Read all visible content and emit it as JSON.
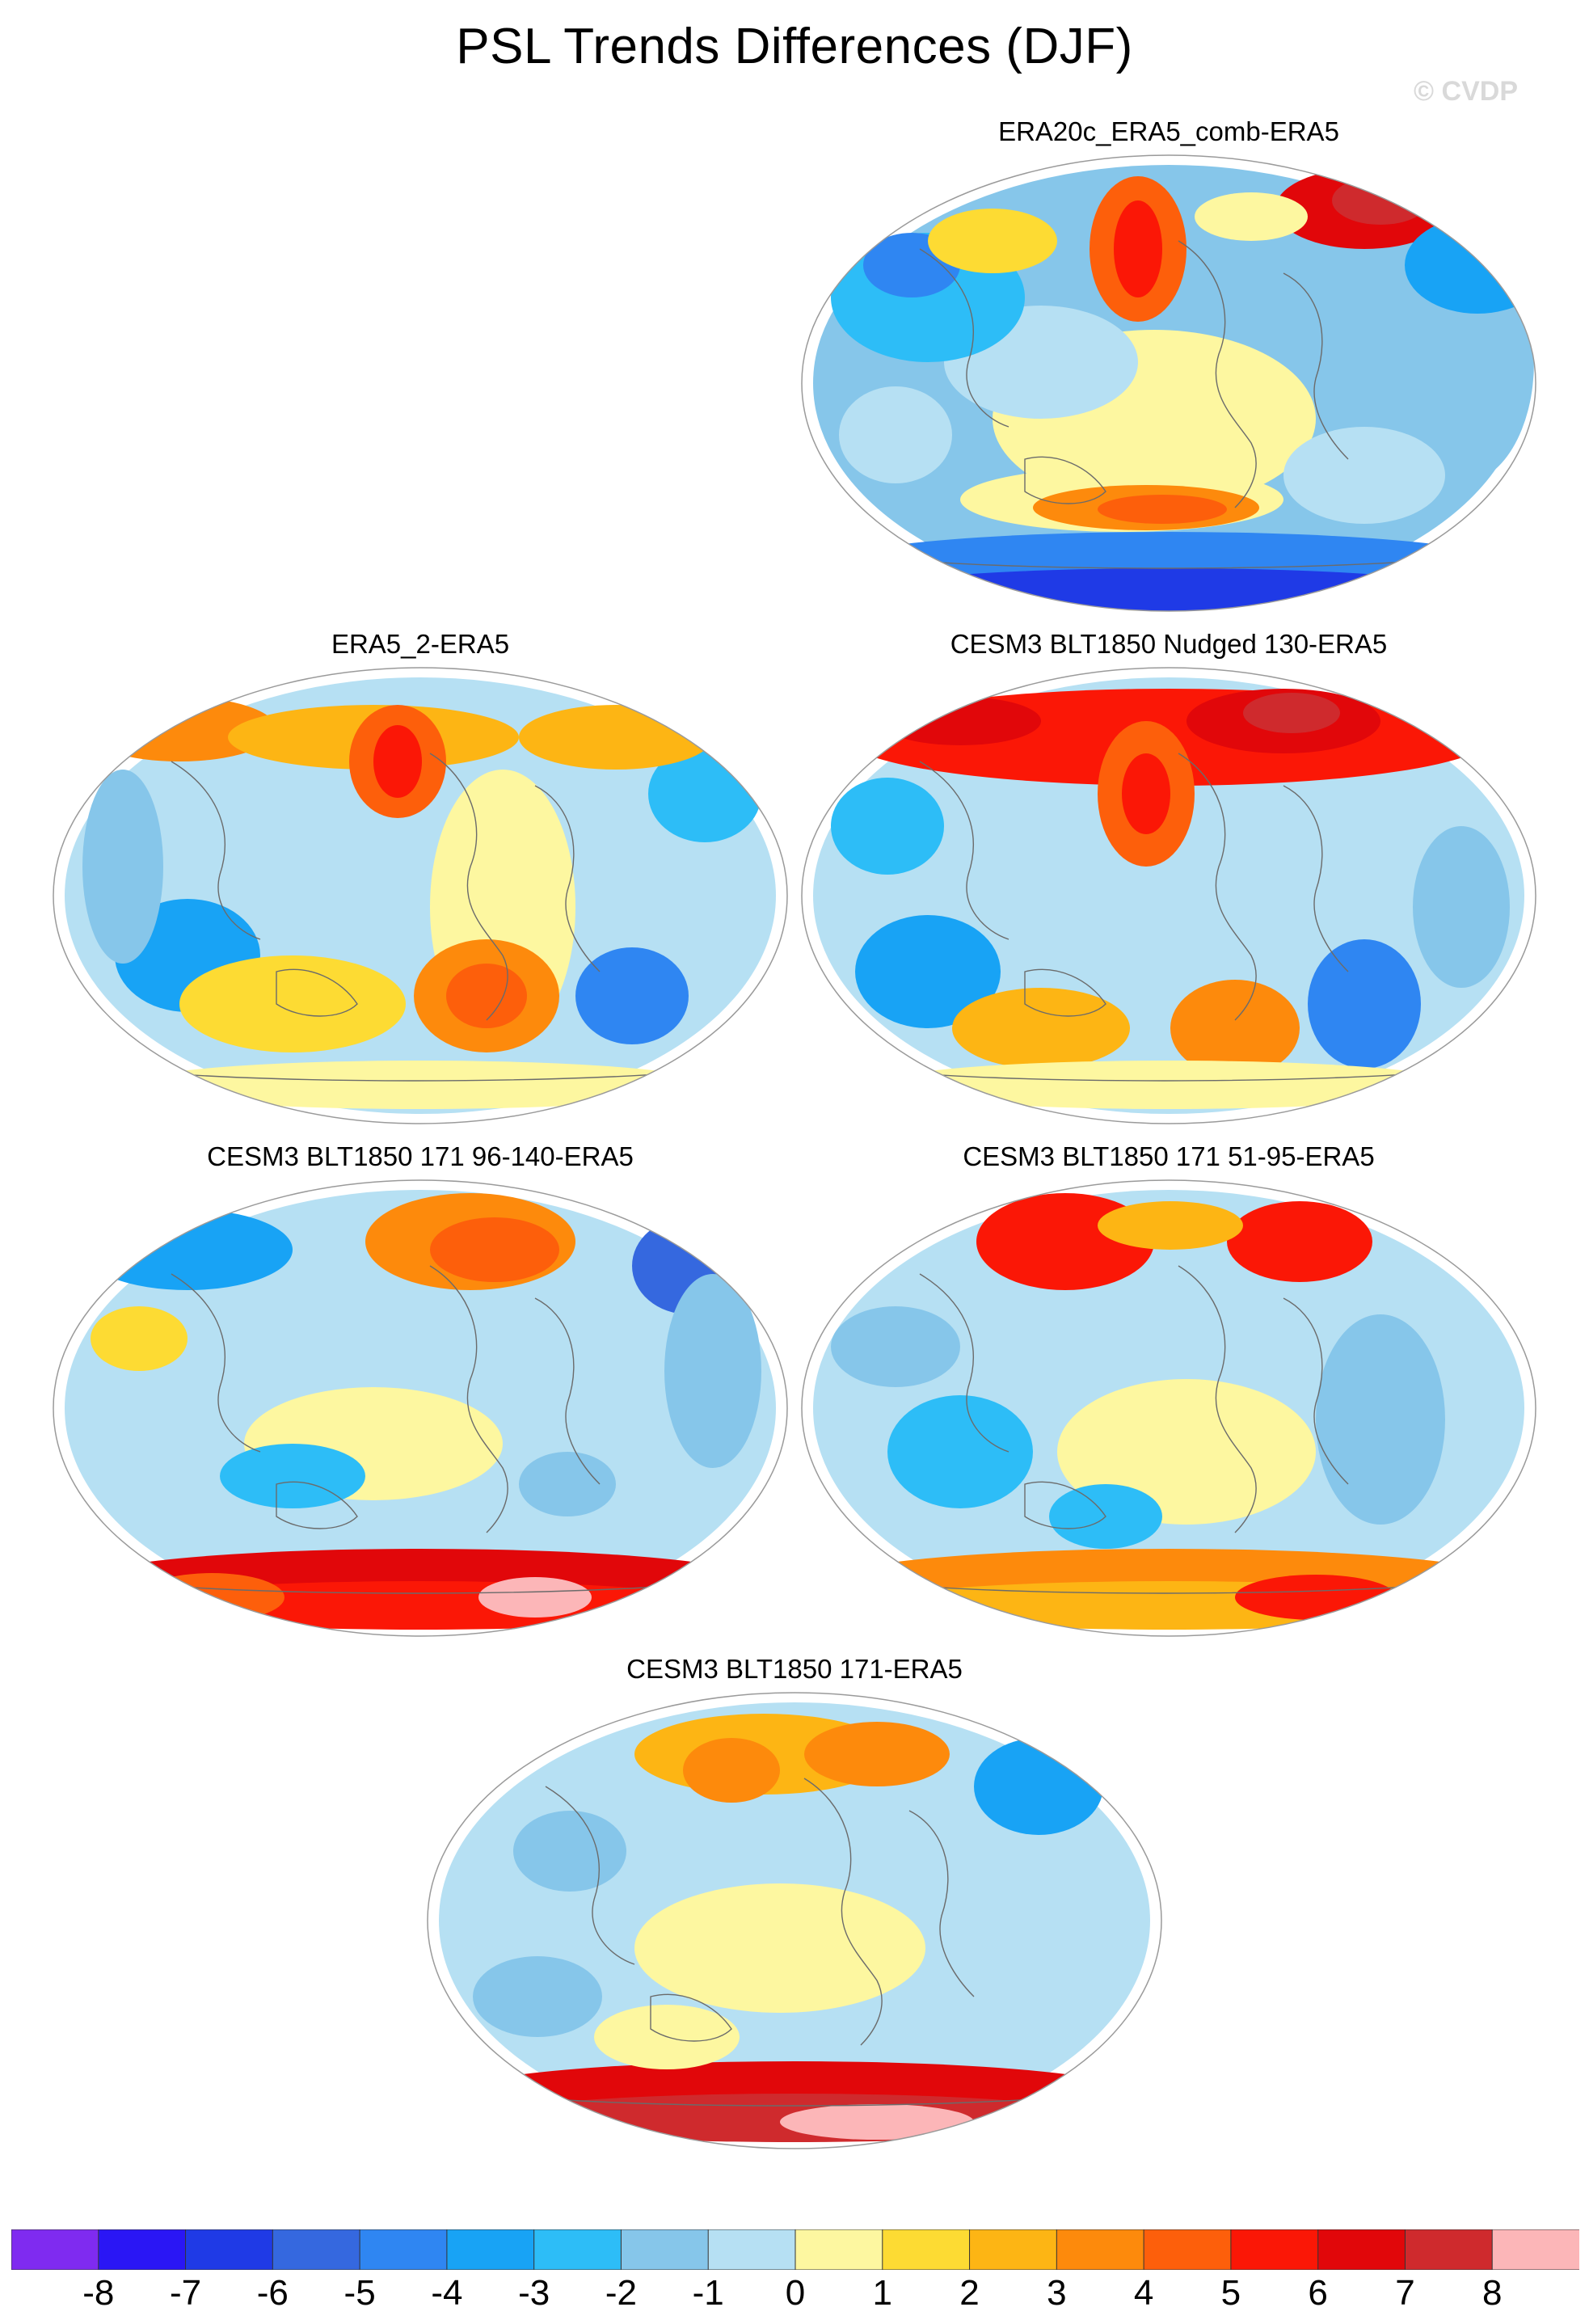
{
  "figure": {
    "title": "PSL Trends Differences (DJF)",
    "watermark": "© CVDP"
  },
  "colorbar": {
    "labels": [
      "-8",
      "-7",
      "-6",
      "-5",
      "-4",
      "-3",
      "-2",
      "-1",
      "0",
      "1",
      "2",
      "3",
      "4",
      "5",
      "6",
      "7",
      "8"
    ],
    "colors": [
      "#7f2bf0",
      "#2a16f5",
      "#1f3ae6",
      "#3568df",
      "#2f86f2",
      "#18a3f5",
      "#2dbdf7",
      "#86c6ea",
      "#b6e0f3",
      "#fdf7a0",
      "#fddb33",
      "#fdb514",
      "#fd8a0c",
      "#fd5f0b",
      "#fb1706",
      "#e1070a",
      "#cf2a2d",
      "#fcb6b8"
    ],
    "ticks": [
      -8,
      -7,
      -6,
      -5,
      -4,
      -3,
      -2,
      -1,
      0,
      1,
      2,
      3,
      4,
      5,
      6,
      7,
      8
    ]
  },
  "panels": [
    {
      "title": "ERA20c_ERA5_comb-ERA5",
      "pattern": "p1"
    },
    {
      "title": "ERA5_2-ERA5",
      "pattern": "p2"
    },
    {
      "title": "CESM3 BLT1850 Nudged 130-ERA5",
      "pattern": "p3"
    },
    {
      "title": "CESM3 BLT1850 171 96-140-ERA5",
      "pattern": "p4"
    },
    {
      "title": "CESM3 BLT1850 171 51-95-ERA5",
      "pattern": "p5"
    },
    {
      "title": "CESM3 BLT1850 171-ERA5",
      "pattern": "p6"
    }
  ]
}
